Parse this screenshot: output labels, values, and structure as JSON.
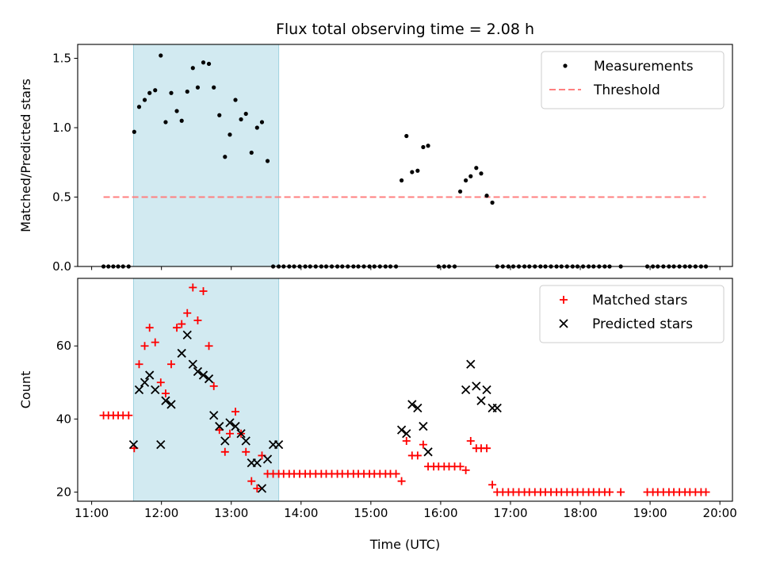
{
  "chart_data": [
    {
      "type": "scatter",
      "title": "Flux total observing time = 2.08 h",
      "xlabel": "",
      "ylabel": "Matched/Predicted stars",
      "xlim": [
        10.8,
        20.18
      ],
      "ylim": [
        0,
        1.6
      ],
      "yticks": [
        "0.0",
        "0.5",
        "1.0",
        "1.5"
      ],
      "grid": false,
      "legend_position": "upper right",
      "shaded_interval": [
        11.6,
        13.68
      ],
      "shaded_color": "#add8e6",
      "threshold": {
        "name": "Threshold",
        "y": 0.5,
        "x": [
          11.17,
          19.8
        ],
        "color": "#ff7f7f",
        "style": "dashed"
      },
      "series": [
        {
          "name": "Measurements",
          "marker": "dot",
          "color": "#000000",
          "x": [
            11.17,
            11.24,
            11.31,
            11.38,
            11.45,
            11.53,
            11.61,
            11.68,
            11.76,
            11.83,
            11.91,
            11.99,
            12.06,
            12.14,
            12.22,
            12.29,
            12.37,
            12.45,
            12.52,
            12.6,
            12.68,
            12.75,
            12.83,
            12.91,
            12.98,
            13.06,
            13.14,
            13.21,
            13.29,
            13.37,
            13.44,
            13.52,
            13.6,
            13.68,
            13.75,
            13.83,
            13.9,
            13.98,
            14.06,
            14.13,
            14.21,
            14.29,
            14.36,
            14.44,
            14.52,
            14.59,
            14.67,
            14.75,
            14.82,
            14.9,
            14.98,
            15.05,
            15.13,
            15.21,
            15.28,
            15.36,
            15.44,
            15.51,
            15.59,
            15.67,
            15.75,
            15.82,
            15.97,
            16.05,
            16.12,
            16.2,
            16.28,
            16.36,
            16.43,
            16.51,
            16.58,
            16.66,
            16.74,
            16.81,
            16.89,
            16.97,
            17.04,
            17.12,
            17.2,
            17.27,
            17.35,
            17.43,
            17.5,
            17.58,
            17.66,
            17.73,
            17.81,
            17.89,
            17.96,
            18.04,
            18.12,
            18.19,
            18.27,
            18.35,
            18.42,
            18.58,
            18.96,
            19.04,
            19.11,
            19.19,
            19.27,
            19.34,
            19.42,
            19.5,
            19.57,
            19.65,
            19.73,
            19.8
          ],
          "y": [
            0,
            0,
            0,
            0,
            0,
            0,
            0.97,
            1.15,
            1.2,
            1.25,
            1.27,
            1.52,
            1.04,
            1.25,
            1.12,
            1.05,
            1.26,
            1.43,
            1.29,
            1.47,
            1.46,
            1.29,
            1.09,
            0.79,
            0.95,
            1.2,
            1.06,
            1.1,
            0.82,
            1.0,
            1.04,
            0.76,
            0,
            0,
            0,
            0,
            0,
            0,
            0,
            0,
            0,
            0,
            0,
            0,
            0,
            0,
            0,
            0,
            0,
            0,
            0,
            0,
            0,
            0,
            0,
            0,
            0.62,
            0.94,
            0.68,
            0.69,
            0.86,
            0.87,
            0,
            0,
            0,
            0,
            0.54,
            0.62,
            0.65,
            0.71,
            0.67,
            0.51,
            0.46,
            0,
            0,
            0,
            0,
            0,
            0,
            0,
            0,
            0,
            0,
            0,
            0,
            0,
            0,
            0,
            0,
            0,
            0,
            0,
            0,
            0,
            0,
            0,
            0,
            0,
            0,
            0,
            0,
            0,
            0,
            0,
            0,
            0,
            0,
            0
          ]
        }
      ]
    },
    {
      "type": "scatter",
      "title": "",
      "xlabel": "Time (UTC)",
      "ylabel": "Count",
      "xlim": [
        10.8,
        20.18
      ],
      "ylim": [
        17.5,
        78.5
      ],
      "xticks": [
        "11:00",
        "12:00",
        "13:00",
        "14:00",
        "15:00",
        "16:00",
        "17:00",
        "18:00",
        "19:00",
        "20:00"
      ],
      "yticks": [
        "20",
        "40",
        "60"
      ],
      "grid": false,
      "legend_position": "upper right",
      "shaded_interval": [
        11.6,
        13.68
      ],
      "series": [
        {
          "name": "Matched stars",
          "marker": "plus",
          "color": "#ff0000",
          "x": [
            11.17,
            11.24,
            11.31,
            11.38,
            11.45,
            11.53,
            11.61,
            11.68,
            11.76,
            11.83,
            11.91,
            11.99,
            12.06,
            12.14,
            12.22,
            12.29,
            12.37,
            12.45,
            12.52,
            12.6,
            12.68,
            12.75,
            12.83,
            12.91,
            12.98,
            13.06,
            13.14,
            13.21,
            13.29,
            13.37,
            13.44,
            13.52,
            13.6,
            13.68,
            13.75,
            13.83,
            13.9,
            13.98,
            14.06,
            14.13,
            14.21,
            14.29,
            14.36,
            14.44,
            14.52,
            14.59,
            14.67,
            14.75,
            14.82,
            14.9,
            14.98,
            15.05,
            15.13,
            15.21,
            15.28,
            15.36,
            15.44,
            15.51,
            15.59,
            15.67,
            15.75,
            15.82,
            15.9,
            15.97,
            16.05,
            16.12,
            16.2,
            16.28,
            16.36,
            16.43,
            16.51,
            16.58,
            16.66,
            16.74,
            16.81,
            16.89,
            16.97,
            17.04,
            17.12,
            17.2,
            17.27,
            17.35,
            17.43,
            17.5,
            17.58,
            17.66,
            17.73,
            17.81,
            17.89,
            17.96,
            18.04,
            18.12,
            18.19,
            18.27,
            18.35,
            18.42,
            18.58,
            18.96,
            19.04,
            19.11,
            19.19,
            19.27,
            19.34,
            19.42,
            19.5,
            19.57,
            19.65,
            19.73,
            19.8
          ],
          "y": [
            41,
            41,
            41,
            41,
            41,
            41,
            32,
            55,
            60,
            65,
            61,
            50,
            47,
            55,
            65,
            66,
            69,
            76,
            67,
            75,
            60,
            49,
            37,
            31,
            36,
            42,
            36,
            31,
            23,
            21,
            30,
            25,
            25,
            25,
            25,
            25,
            25,
            25,
            25,
            25,
            25,
            25,
            25,
            25,
            25,
            25,
            25,
            25,
            25,
            25,
            25,
            25,
            25,
            25,
            25,
            25,
            23,
            34,
            30,
            30,
            33,
            27,
            27,
            27,
            27,
            27,
            27,
            27,
            26,
            34,
            32,
            32,
            32,
            22,
            20,
            20,
            20,
            20,
            20,
            20,
            20,
            20,
            20,
            20,
            20,
            20,
            20,
            20,
            20,
            20,
            20,
            20,
            20,
            20,
            20,
            20,
            20,
            20,
            20,
            20,
            20,
            20,
            20,
            20,
            20,
            20,
            20,
            20,
            20
          ]
        },
        {
          "name": "Predicted stars",
          "marker": "x",
          "color": "#000000",
          "x": [
            11.6,
            11.68,
            11.76,
            11.83,
            11.91,
            11.99,
            12.06,
            12.14,
            12.29,
            12.37,
            12.45,
            12.52,
            12.6,
            12.68,
            12.75,
            12.83,
            12.91,
            12.98,
            13.06,
            13.14,
            13.21,
            13.29,
            13.37,
            13.44,
            13.52,
            13.6,
            13.68,
            15.44,
            15.51,
            15.59,
            15.67,
            15.75,
            15.82,
            16.36,
            16.43,
            16.51,
            16.58,
            16.66,
            16.74,
            16.81
          ],
          "y": [
            33,
            48,
            50,
            52,
            48,
            33,
            45,
            44,
            58,
            63,
            55,
            53,
            52,
            51,
            41,
            38,
            34,
            39,
            38,
            36,
            34,
            28,
            28,
            21,
            29,
            33,
            33,
            37,
            36,
            44,
            43,
            38,
            31,
            48,
            55,
            49,
            45,
            48,
            43,
            43
          ]
        }
      ]
    }
  ]
}
